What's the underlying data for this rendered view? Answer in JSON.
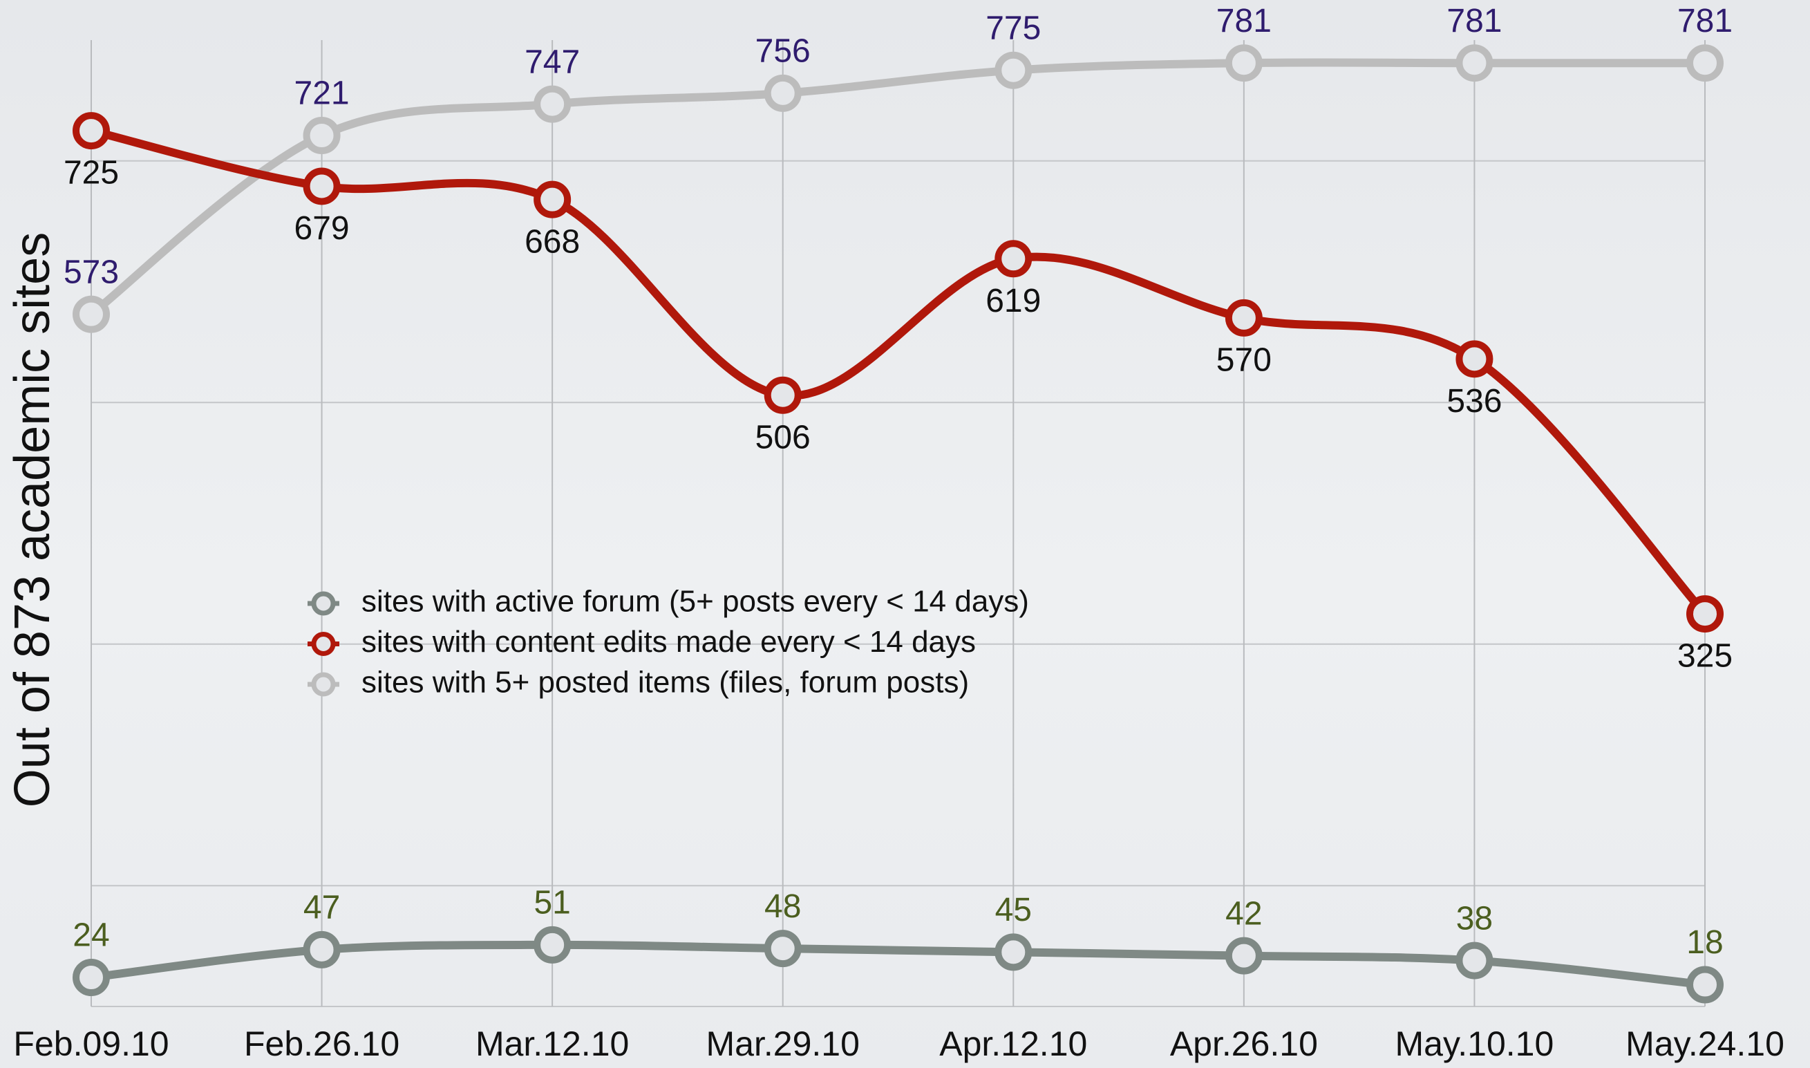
{
  "chart_data": {
    "type": "line",
    "y_label": "Out of 873 academic sites",
    "categories": [
      "Feb.09.10",
      "Feb.26.10",
      "Mar.12.10",
      "Mar.29.10",
      "Apr.12.10",
      "Apr.26.10",
      "May.10.10",
      "May.24.10"
    ],
    "series": [
      {
        "name": "sites with active forum (5+ posts every < 14 days)",
        "color": "#7f8985",
        "label_color": "#4b5e1f",
        "values": [
          24,
          47,
          51,
          48,
          45,
          42,
          38,
          18
        ]
      },
      {
        "name": "sites with content edits made every < 14 days",
        "color": "#b0180b",
        "label_color": "#111111",
        "values": [
          725,
          679,
          668,
          506,
          619,
          570,
          536,
          325
        ]
      },
      {
        "name": "sites with 5+ posted items (files, forum posts)",
        "color": "#bcbcbc",
        "label_color": "#2f1c6e",
        "values": [
          573,
          721,
          747,
          756,
          775,
          781,
          781,
          781
        ]
      }
    ],
    "ylim": [
      0,
      800
    ],
    "yticks": [
      100,
      300,
      500,
      700
    ],
    "show_ytick_labels": false,
    "grid": true,
    "smooth": true
  }
}
